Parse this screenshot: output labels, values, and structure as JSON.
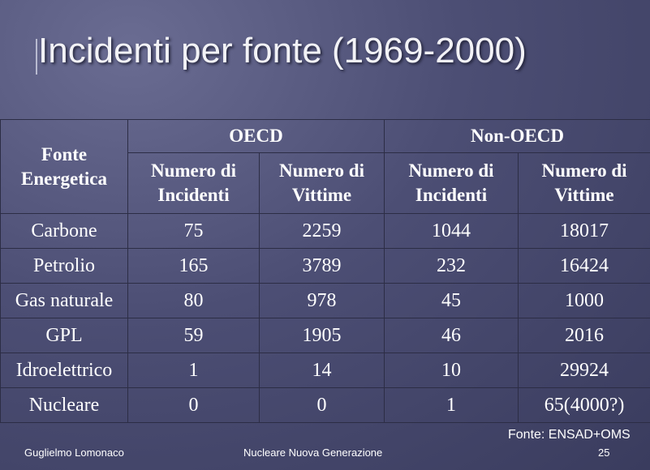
{
  "title": "Incidenti per fonte (1969-2000)",
  "table": {
    "header": {
      "first": "Fonte Energetica",
      "groups": [
        "OECD",
        "Non-OECD"
      ],
      "columns": [
        "Numero di Incidenti",
        "Numero di Vittime",
        "Numero di Incidenti",
        "Numero di Vittime"
      ]
    },
    "rows": [
      [
        "Carbone",
        75,
        2259,
        1044,
        18017
      ],
      [
        "Petrolio",
        165,
        3789,
        232,
        16424
      ],
      [
        "Gas naturale",
        80,
        978,
        45,
        1000
      ],
      [
        "GPL",
        59,
        1905,
        46,
        2016
      ],
      [
        "Idroelettrico",
        1,
        14,
        10,
        29924
      ],
      [
        "Nucleare",
        0,
        0,
        1,
        "65(4000?)"
      ]
    ]
  },
  "source": "Fonte: ENSAD+OMS",
  "footer": {
    "author": "Guglielmo Lomonaco",
    "subtitle": "Nucleare Nuova Generazione",
    "page": 25
  }
}
